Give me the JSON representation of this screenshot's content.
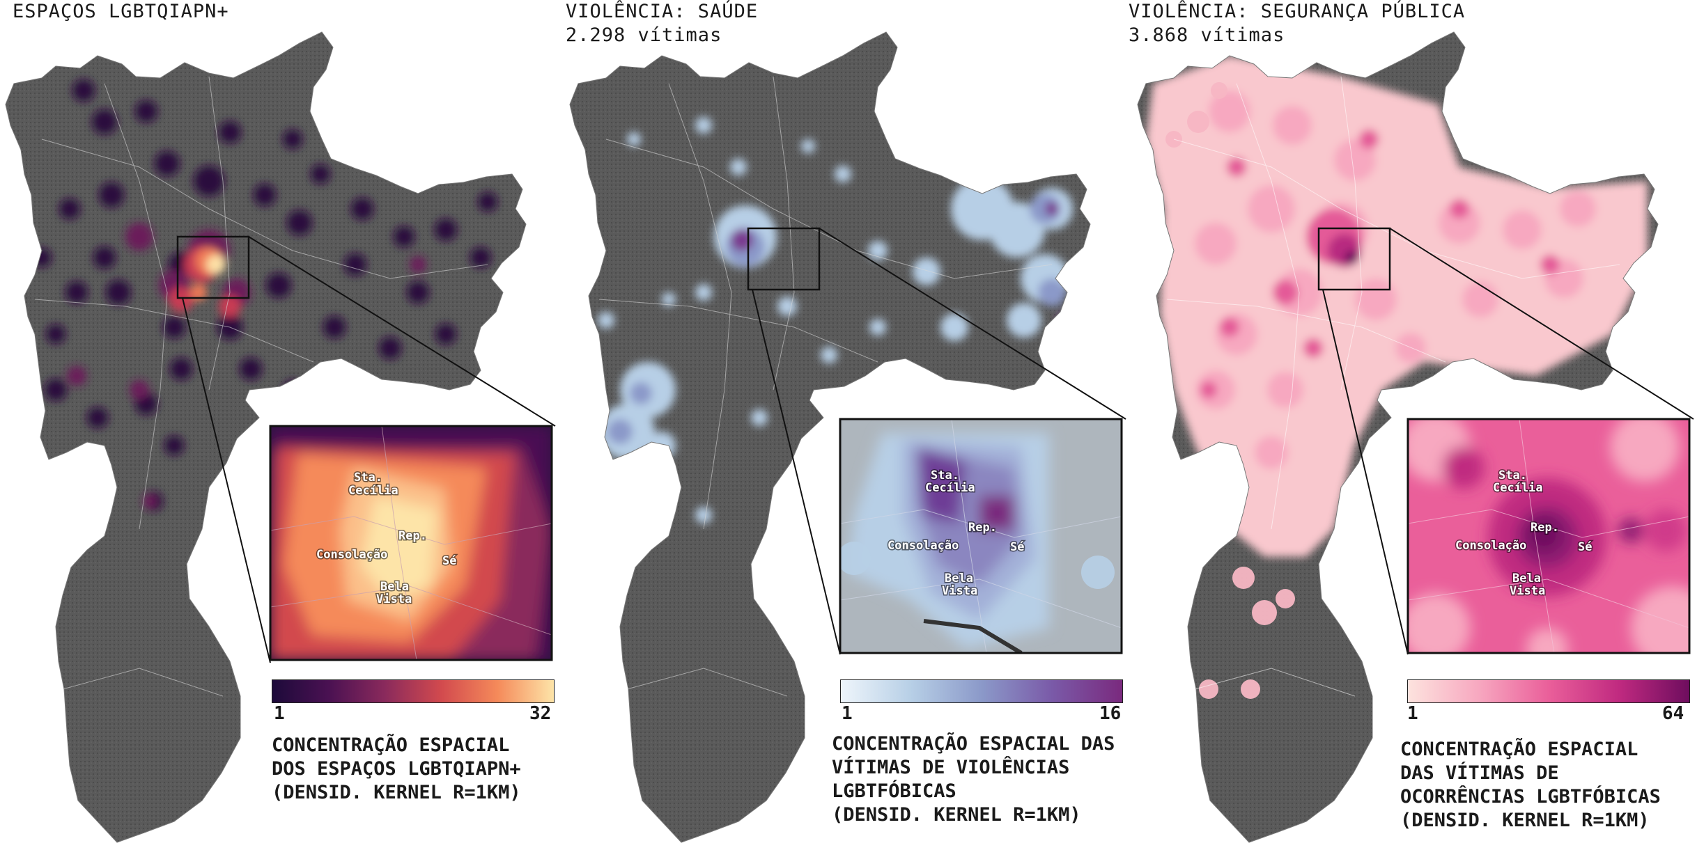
{
  "panels": [
    {
      "id": "espacos",
      "title_lines": [
        "ESPAÇOS LGBTQIAPN+"
      ],
      "legend": {
        "min": "1",
        "max": "32",
        "caption_lines": [
          "CONCENTRAÇÃO ESPACIAL",
          "DOS ESPAÇOS LGBTQIAPN+",
          "(DENSID. KERNEL R=1KM)"
        ],
        "colors": [
          "#1d0a3a",
          "#4a1152",
          "#8a2a5c",
          "#d24a4e",
          "#f58a5a",
          "#fde4a8"
        ]
      },
      "inset_labels": [
        "Sta.",
        "Cecília",
        "Rep.",
        "Consolação",
        "Sé",
        "Bela",
        "Vista"
      ]
    },
    {
      "id": "saude",
      "title_lines": [
        "VIOLÊNCIA: SAÚDE",
        "2.298 vítimas"
      ],
      "legend": {
        "min": "1",
        "max": "16",
        "caption_lines": [
          "CONCENTRAÇÃO ESPACIAL DAS",
          "VÍTIMAS DE VIOLÊNCIAS",
          "LGBTFÓBICAS",
          "(DENSID. KERNEL R=1KM)"
        ],
        "colors": [
          "#e8f1fa",
          "#b7cfe6",
          "#8b99c9",
          "#7a5aa8",
          "#7a2a7e"
        ]
      },
      "inset_labels": [
        "Sta.",
        "Cecília",
        "Rep.",
        "Consolação",
        "Sé",
        "Bela",
        "Vista"
      ]
    },
    {
      "id": "seguranca",
      "title_lines": [
        "VIOLÊNCIA: SEGURANÇA PÚBLICA",
        "3.868 vítimas"
      ],
      "legend": {
        "min": "1",
        "max": "64",
        "caption_lines": [
          "CONCENTRAÇÃO ESPACIAL",
          "DAS VÍTIMAS DE",
          "OCORRÊNCIAS LGBTFÓBICAS",
          "(DENSID. KERNEL R=1KM)"
        ],
        "colors": [
          "#fde0dc",
          "#f7a8c0",
          "#ea5f9a",
          "#c02a80",
          "#6e0d5e"
        ]
      },
      "inset_labels": [
        "Sta.",
        "Cecília",
        "Rep.",
        "Consolação",
        "Sé",
        "Bela",
        "Vista"
      ]
    }
  ]
}
